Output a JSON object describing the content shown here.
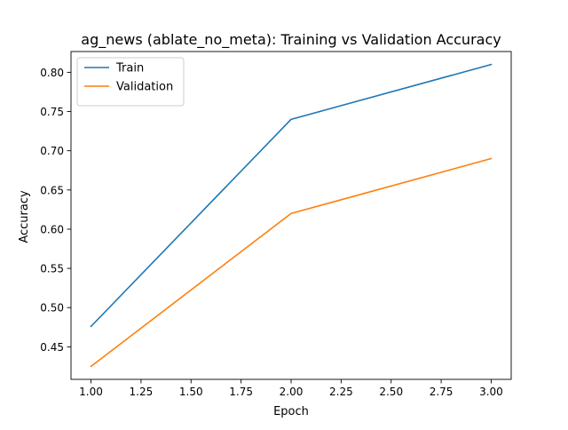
{
  "chart_data": {
    "type": "line",
    "title": "ag_news (ablate_no_meta): Training vs Validation Accuracy",
    "xlabel": "Epoch",
    "ylabel": "Accuracy",
    "x": [
      1,
      2,
      3
    ],
    "xlim": [
      0.9,
      3.1
    ],
    "ylim": [
      0.4085,
      0.8265
    ],
    "x_ticks": [
      "1.00",
      "1.25",
      "1.50",
      "1.75",
      "2.00",
      "2.25",
      "2.50",
      "2.75",
      "3.00"
    ],
    "y_ticks": [
      "0.45",
      "0.50",
      "0.55",
      "0.60",
      "0.65",
      "0.70",
      "0.75",
      "0.80"
    ],
    "grid": false,
    "legend_position": "top-left",
    "series": [
      {
        "name": "Train",
        "color": "#1f77b4",
        "values": [
          0.476,
          0.74,
          0.81
        ]
      },
      {
        "name": "Validation",
        "color": "#ff7f0e",
        "values": [
          0.425,
          0.62,
          0.69
        ]
      }
    ]
  }
}
